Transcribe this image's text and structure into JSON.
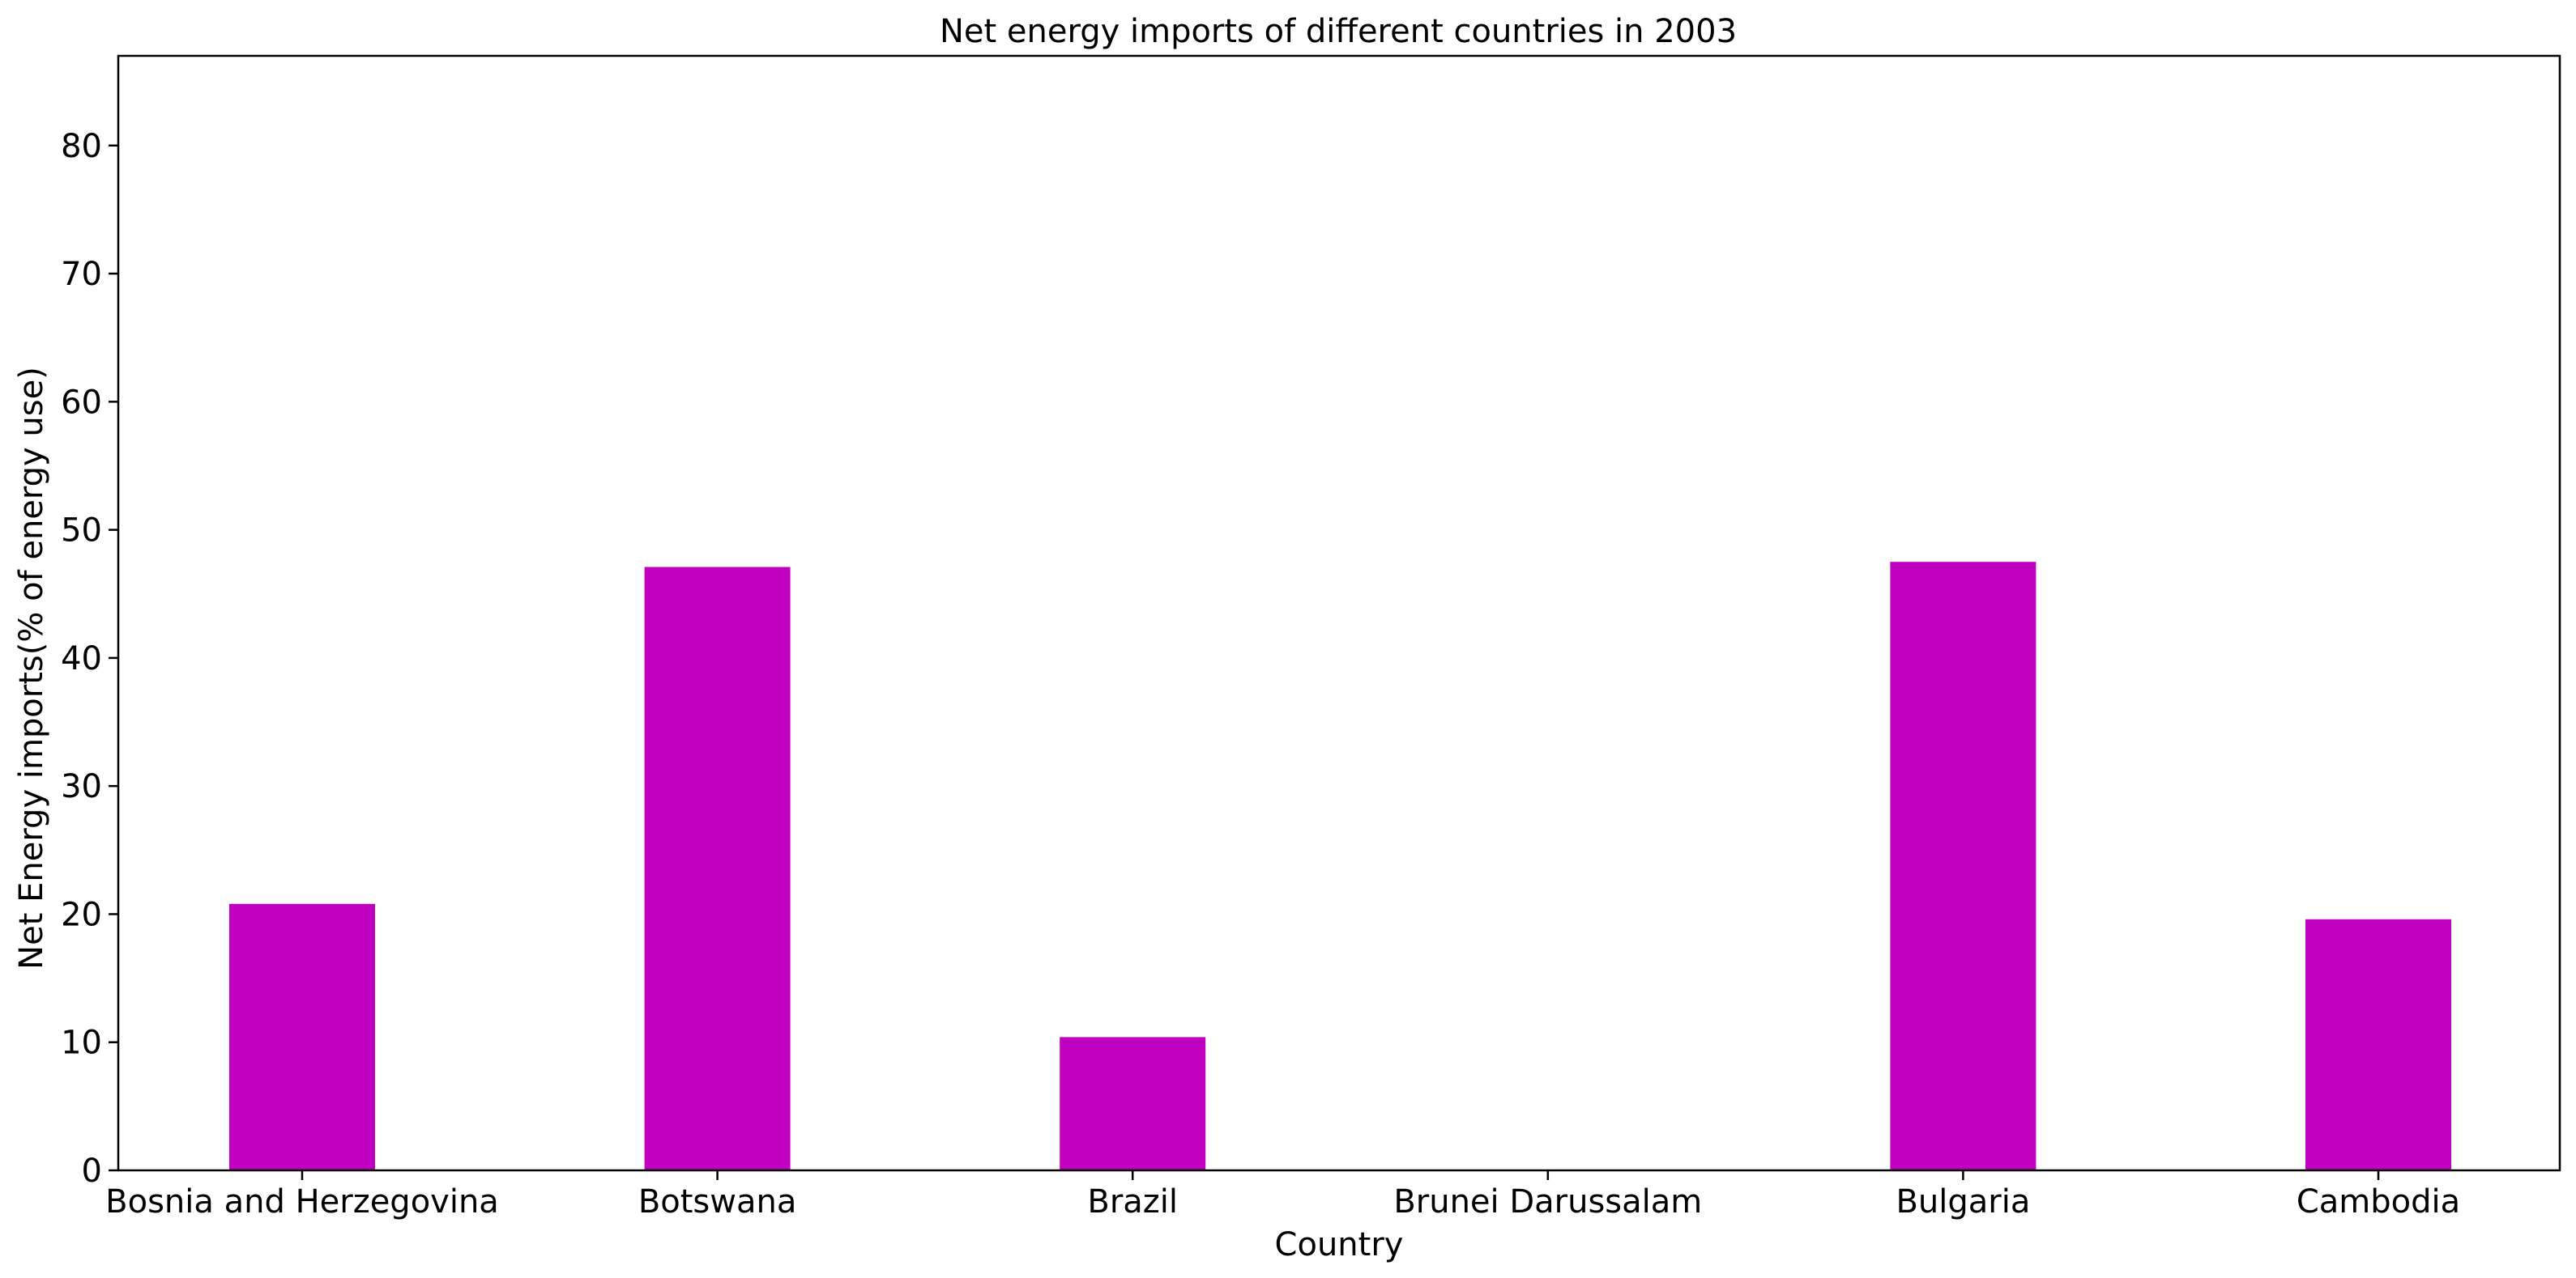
{
  "chart_data": {
    "type": "bar",
    "title": "Net energy imports of different countries in 2003",
    "xlabel": "Country",
    "ylabel": "Net Energy imports(% of energy use)",
    "categories": [
      "Bosnia and Herzegovina",
      "Botswana",
      "Brazil",
      "Brunei Darussalam",
      "Bulgaria",
      "Cambodia"
    ],
    "values": [
      20.8,
      47.1,
      10.4,
      0,
      47.5,
      19.6
    ],
    "ylim": [
      0,
      87
    ],
    "yticks": [
      0,
      10,
      20,
      30,
      40,
      50,
      60,
      70,
      80
    ],
    "bar_color": "#bf00bf",
    "grid": false,
    "legend": "none"
  }
}
